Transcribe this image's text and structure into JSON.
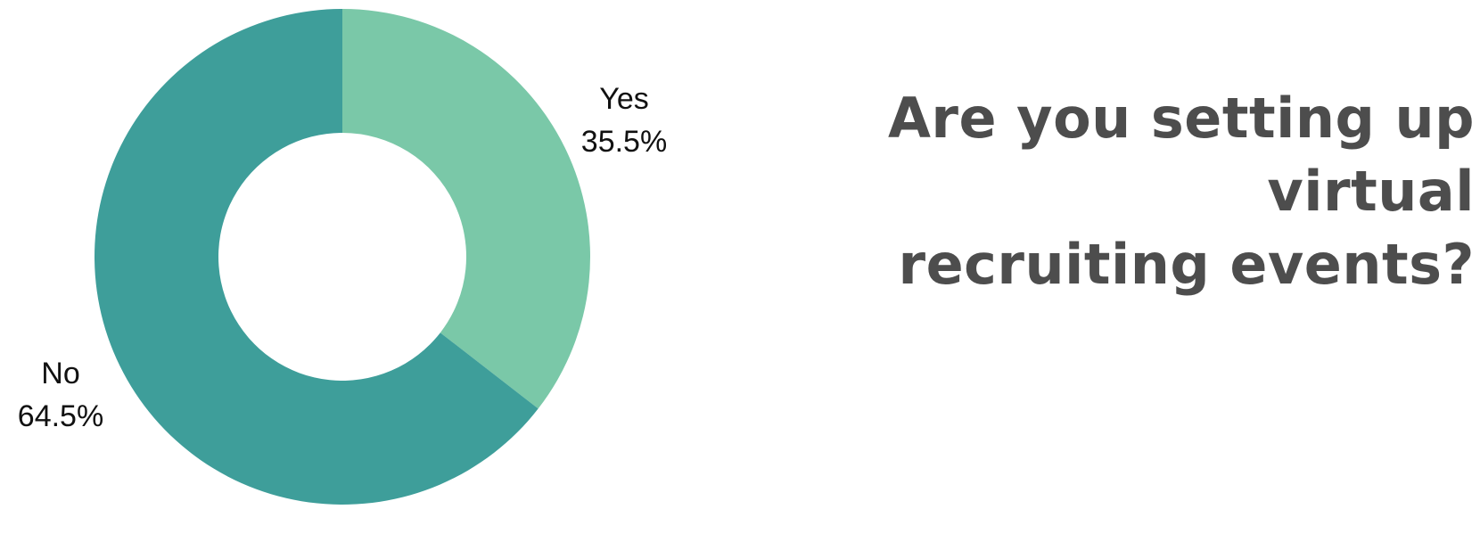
{
  "chart_data": {
    "type": "pie",
    "donut": true,
    "title": [
      "Are you setting up virtual",
      "recruiting events?"
    ],
    "slices": [
      {
        "label": "Yes",
        "value": 35.5,
        "value_label": "35.5%",
        "color": "#7ac8a8"
      },
      {
        "label": "No",
        "value": 64.5,
        "value_label": "64.5%",
        "color": "#3e9e9a"
      }
    ],
    "start": "top",
    "direction": "clockwise",
    "legend": "none"
  }
}
